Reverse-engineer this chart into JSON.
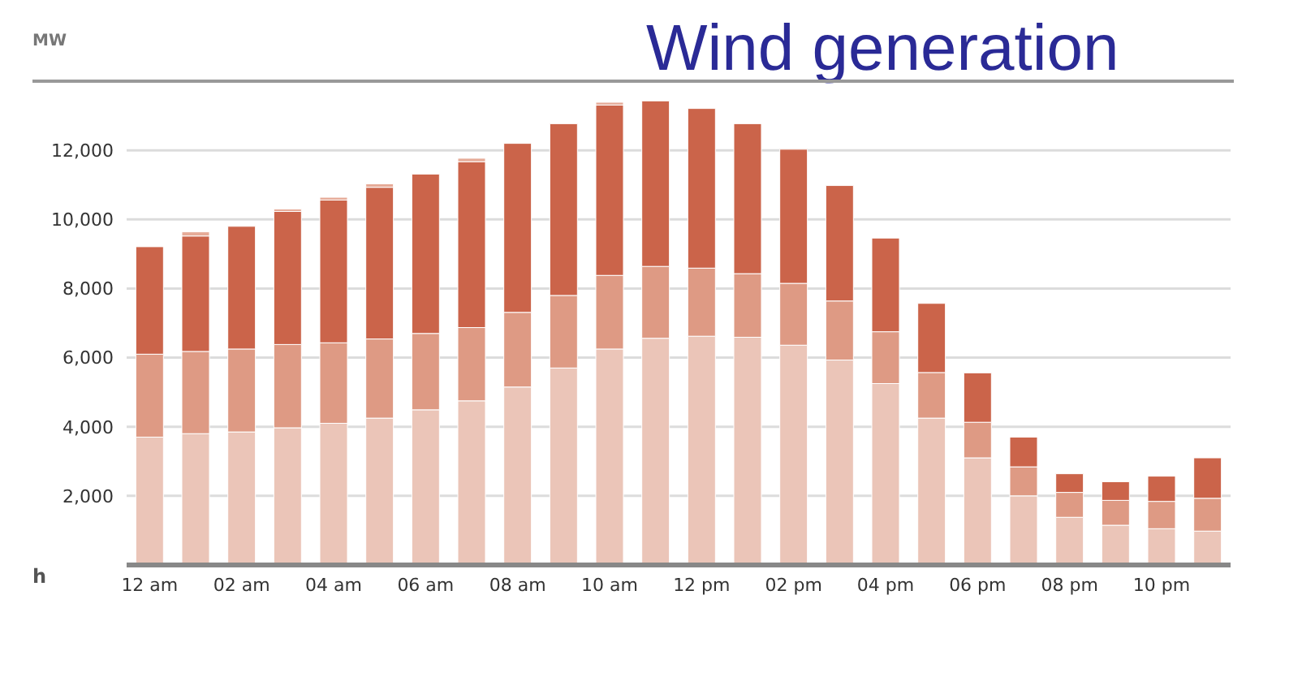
{
  "chart_data": {
    "type": "bar",
    "title": "Wind generation",
    "ylabel": "MW",
    "xlabel": "h",
    "stacked": true,
    "grid": "y",
    "legend": false,
    "categories": [
      "12 am",
      null,
      "02 am",
      null,
      "04 am",
      null,
      "06 am",
      null,
      "08 am",
      null,
      "10 am",
      null,
      "12 pm",
      null,
      "02 pm",
      null,
      "04 pm",
      null,
      "06 pm",
      null,
      "08 pm",
      null,
      "10 pm",
      null
    ],
    "ylim": [
      0,
      14000
    ],
    "yticks": [
      {
        "value": 2000,
        "label": "2,000"
      },
      {
        "value": 4000,
        "label": "4,000"
      },
      {
        "value": 6000,
        "label": "6,000"
      },
      {
        "value": 8000,
        "label": "8,000"
      },
      {
        "value": 10000,
        "label": "10,000"
      },
      {
        "value": 12000,
        "label": "12,000"
      }
    ],
    "series": [
      {
        "color": "#ebc5b8",
        "values": [
          3700,
          3800,
          3850,
          3970,
          4100,
          4250,
          4490,
          4750,
          5150,
          5700,
          6250,
          6560,
          6620,
          6590,
          6360,
          5930,
          5250,
          4250,
          3100,
          2000,
          1380,
          1150,
          1050,
          980
        ]
      },
      {
        "color": "#de9a84",
        "values": [
          2400,
          2380,
          2400,
          2410,
          2330,
          2290,
          2210,
          2120,
          2160,
          2100,
          2130,
          2080,
          1970,
          1840,
          1790,
          1710,
          1500,
          1320,
          1030,
          840,
          720,
          720,
          790,
          950
        ]
      },
      {
        "color": "#cb644a",
        "values": [
          3110,
          3340,
          3550,
          3850,
          4130,
          4390,
          4610,
          4800,
          4890,
          4970,
          4930,
          4790,
          4620,
          4340,
          3880,
          3340,
          2710,
          2000,
          1430,
          860,
          540,
          540,
          730,
          1170
        ]
      },
      {
        "color": "#e6ab98",
        "values": [
          0,
          120,
          0,
          70,
          80,
          100,
          0,
          100,
          0,
          0,
          80,
          0,
          0,
          0,
          0,
          0,
          0,
          0,
          0,
          0,
          0,
          0,
          0,
          0
        ]
      }
    ]
  }
}
